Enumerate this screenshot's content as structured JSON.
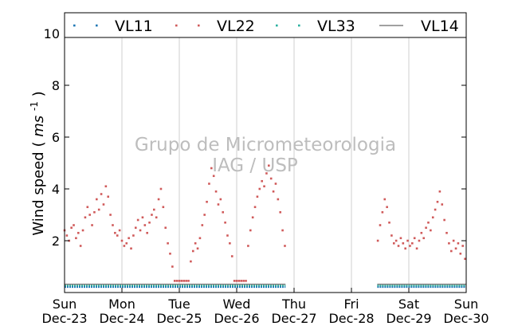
{
  "chart_data": {
    "type": "scatter",
    "ylabel": "Wind speed",
    "ylabel_unit_base": "ms",
    "ylabel_unit_exp": "-1",
    "ylim": [
      0,
      10.8
    ],
    "yticks": [
      2,
      4,
      6,
      8,
      10
    ],
    "x_day_range": [
      0,
      7
    ],
    "xticks": [
      {
        "day": 0,
        "weekday": "Sun",
        "date": "Dec-23"
      },
      {
        "day": 1,
        "weekday": "Mon",
        "date": "Dec-24"
      },
      {
        "day": 2,
        "weekday": "Tue",
        "date": "Dec-25"
      },
      {
        "day": 3,
        "weekday": "Wed",
        "date": "Dec-26"
      },
      {
        "day": 4,
        "weekday": "Thu",
        "date": "Dec-27"
      },
      {
        "day": 5,
        "weekday": "Fri",
        "date": "Dec-28"
      },
      {
        "day": 6,
        "weekday": "Sat",
        "date": "Dec-29"
      },
      {
        "day": 7,
        "weekday": "Sun",
        "date": "Dec-30"
      }
    ],
    "grid": "vertical",
    "legend_placement": "top",
    "series": [
      {
        "name": "VL11",
        "style": "dots",
        "color": "#1f77b4"
      },
      {
        "name": "VL22",
        "style": "dots",
        "color": "#d05a5a"
      },
      {
        "name": "VL33",
        "style": "dots",
        "color": "#2ab0a0"
      },
      {
        "name": "VL14",
        "style": "line",
        "color": "#808080"
      }
    ],
    "flat_segments": [
      {
        "series": "VL11",
        "x_start": 0,
        "x_end": 3.85,
        "value": 0.22
      },
      {
        "series": "VL11",
        "x_start": 5.45,
        "x_end": 7,
        "value": 0.22
      },
      {
        "series": "VL33",
        "x_start": 0,
        "x_end": 3.85,
        "value": 0.28
      },
      {
        "series": "VL33",
        "x_start": 5.45,
        "x_end": 7,
        "value": 0.28
      },
      {
        "series": "VL14",
        "x_start": 0,
        "x_end": 3.85,
        "value": 0.32
      },
      {
        "series": "VL14",
        "x_start": 5.45,
        "x_end": 7,
        "value": 0.32
      }
    ],
    "vl22_points": [
      {
        "x": 0.0,
        "y": 2.4
      },
      {
        "x": 0.04,
        "y": 2.2
      },
      {
        "x": 0.08,
        "y": 2.0
      },
      {
        "x": 0.12,
        "y": 2.5
      },
      {
        "x": 0.16,
        "y": 2.6
      },
      {
        "x": 0.2,
        "y": 2.1
      },
      {
        "x": 0.24,
        "y": 2.3
      },
      {
        "x": 0.28,
        "y": 1.8
      },
      {
        "x": 0.32,
        "y": 2.4
      },
      {
        "x": 0.36,
        "y": 2.9
      },
      {
        "x": 0.4,
        "y": 3.3
      },
      {
        "x": 0.44,
        "y": 3.0
      },
      {
        "x": 0.48,
        "y": 2.6
      },
      {
        "x": 0.52,
        "y": 3.1
      },
      {
        "x": 0.56,
        "y": 3.6
      },
      {
        "x": 0.6,
        "y": 3.2
      },
      {
        "x": 0.64,
        "y": 3.8
      },
      {
        "x": 0.68,
        "y": 3.4
      },
      {
        "x": 0.72,
        "y": 4.1
      },
      {
        "x": 0.76,
        "y": 3.7
      },
      {
        "x": 0.8,
        "y": 3.0
      },
      {
        "x": 0.84,
        "y": 2.6
      },
      {
        "x": 0.88,
        "y": 2.3
      },
      {
        "x": 0.92,
        "y": 2.2
      },
      {
        "x": 0.96,
        "y": 2.4
      },
      {
        "x": 1.0,
        "y": 2.0
      },
      {
        "x": 1.04,
        "y": 1.8
      },
      {
        "x": 1.08,
        "y": 1.9
      },
      {
        "x": 1.12,
        "y": 2.1
      },
      {
        "x": 1.16,
        "y": 1.7
      },
      {
        "x": 1.2,
        "y": 2.2
      },
      {
        "x": 1.24,
        "y": 2.5
      },
      {
        "x": 1.28,
        "y": 2.8
      },
      {
        "x": 1.32,
        "y": 2.4
      },
      {
        "x": 1.36,
        "y": 2.9
      },
      {
        "x": 1.4,
        "y": 2.6
      },
      {
        "x": 1.44,
        "y": 2.3
      },
      {
        "x": 1.48,
        "y": 2.7
      },
      {
        "x": 1.52,
        "y": 3.0
      },
      {
        "x": 1.56,
        "y": 3.2
      },
      {
        "x": 1.6,
        "y": 2.9
      },
      {
        "x": 1.64,
        "y": 3.6
      },
      {
        "x": 1.68,
        "y": 4.0
      },
      {
        "x": 1.72,
        "y": 3.3
      },
      {
        "x": 1.76,
        "y": 2.5
      },
      {
        "x": 1.8,
        "y": 1.9
      },
      {
        "x": 1.84,
        "y": 1.5
      },
      {
        "x": 1.88,
        "y": 1.0
      },
      {
        "x": 1.92,
        "y": 0.45
      },
      {
        "x": 1.96,
        "y": 0.45
      },
      {
        "x": 2.0,
        "y": 0.45
      },
      {
        "x": 2.04,
        "y": 0.45
      },
      {
        "x": 2.08,
        "y": 0.45
      },
      {
        "x": 2.12,
        "y": 0.45
      },
      {
        "x": 2.16,
        "y": 0.45
      },
      {
        "x": 2.2,
        "y": 1.2
      },
      {
        "x": 2.24,
        "y": 1.6
      },
      {
        "x": 2.28,
        "y": 1.9
      },
      {
        "x": 2.32,
        "y": 1.7
      },
      {
        "x": 2.36,
        "y": 2.1
      },
      {
        "x": 2.4,
        "y": 2.6
      },
      {
        "x": 2.44,
        "y": 3.0
      },
      {
        "x": 2.48,
        "y": 3.5
      },
      {
        "x": 2.52,
        "y": 4.2
      },
      {
        "x": 2.56,
        "y": 4.8
      },
      {
        "x": 2.6,
        "y": 4.5
      },
      {
        "x": 2.64,
        "y": 3.9
      },
      {
        "x": 2.68,
        "y": 3.4
      },
      {
        "x": 2.72,
        "y": 3.6
      },
      {
        "x": 2.76,
        "y": 3.1
      },
      {
        "x": 2.8,
        "y": 2.7
      },
      {
        "x": 2.84,
        "y": 2.2
      },
      {
        "x": 2.88,
        "y": 1.9
      },
      {
        "x": 2.92,
        "y": 1.4
      },
      {
        "x": 2.96,
        "y": 0.45
      },
      {
        "x": 3.0,
        "y": 0.45
      },
      {
        "x": 3.04,
        "y": 0.45
      },
      {
        "x": 3.08,
        "y": 0.45
      },
      {
        "x": 3.12,
        "y": 0.45
      },
      {
        "x": 3.16,
        "y": 0.45
      },
      {
        "x": 3.2,
        "y": 1.8
      },
      {
        "x": 3.24,
        "y": 2.4
      },
      {
        "x": 3.28,
        "y": 2.9
      },
      {
        "x": 3.32,
        "y": 3.3
      },
      {
        "x": 3.36,
        "y": 3.7
      },
      {
        "x": 3.4,
        "y": 4.0
      },
      {
        "x": 3.44,
        "y": 4.3
      },
      {
        "x": 3.48,
        "y": 4.1
      },
      {
        "x": 3.52,
        "y": 4.6
      },
      {
        "x": 3.56,
        "y": 4.9
      },
      {
        "x": 3.6,
        "y": 4.4
      },
      {
        "x": 3.64,
        "y": 3.9
      },
      {
        "x": 3.68,
        "y": 4.2
      },
      {
        "x": 3.72,
        "y": 3.6
      },
      {
        "x": 3.76,
        "y": 3.1
      },
      {
        "x": 3.8,
        "y": 2.4
      },
      {
        "x": 3.84,
        "y": 1.8
      },
      {
        "x": 5.46,
        "y": 2.0
      },
      {
        "x": 5.5,
        "y": 2.6
      },
      {
        "x": 5.54,
        "y": 3.1
      },
      {
        "x": 5.58,
        "y": 3.6
      },
      {
        "x": 5.62,
        "y": 3.3
      },
      {
        "x": 5.66,
        "y": 2.7
      },
      {
        "x": 5.7,
        "y": 2.2
      },
      {
        "x": 5.74,
        "y": 1.9
      },
      {
        "x": 5.78,
        "y": 2.0
      },
      {
        "x": 5.82,
        "y": 1.8
      },
      {
        "x": 5.86,
        "y": 2.1
      },
      {
        "x": 5.9,
        "y": 1.9
      },
      {
        "x": 5.94,
        "y": 1.7
      },
      {
        "x": 5.98,
        "y": 2.0
      },
      {
        "x": 6.02,
        "y": 1.8
      },
      {
        "x": 6.06,
        "y": 1.9
      },
      {
        "x": 6.1,
        "y": 2.1
      },
      {
        "x": 6.14,
        "y": 1.7
      },
      {
        "x": 6.18,
        "y": 2.0
      },
      {
        "x": 6.22,
        "y": 2.3
      },
      {
        "x": 6.26,
        "y": 2.1
      },
      {
        "x": 6.3,
        "y": 2.5
      },
      {
        "x": 6.34,
        "y": 2.7
      },
      {
        "x": 6.38,
        "y": 2.4
      },
      {
        "x": 6.42,
        "y": 2.9
      },
      {
        "x": 6.46,
        "y": 3.2
      },
      {
        "x": 6.5,
        "y": 3.5
      },
      {
        "x": 6.54,
        "y": 3.9
      },
      {
        "x": 6.58,
        "y": 3.4
      },
      {
        "x": 6.62,
        "y": 2.8
      },
      {
        "x": 6.66,
        "y": 2.3
      },
      {
        "x": 6.7,
        "y": 1.9
      },
      {
        "x": 6.74,
        "y": 1.6
      },
      {
        "x": 6.78,
        "y": 2.0
      },
      {
        "x": 6.82,
        "y": 1.7
      },
      {
        "x": 6.86,
        "y": 1.9
      },
      {
        "x": 6.9,
        "y": 1.5
      },
      {
        "x": 6.94,
        "y": 1.8
      },
      {
        "x": 6.98,
        "y": 1.3
      }
    ]
  },
  "watermark": {
    "line1": "Grupo de Micrometeorologia",
    "line2": "IAG / USP"
  }
}
